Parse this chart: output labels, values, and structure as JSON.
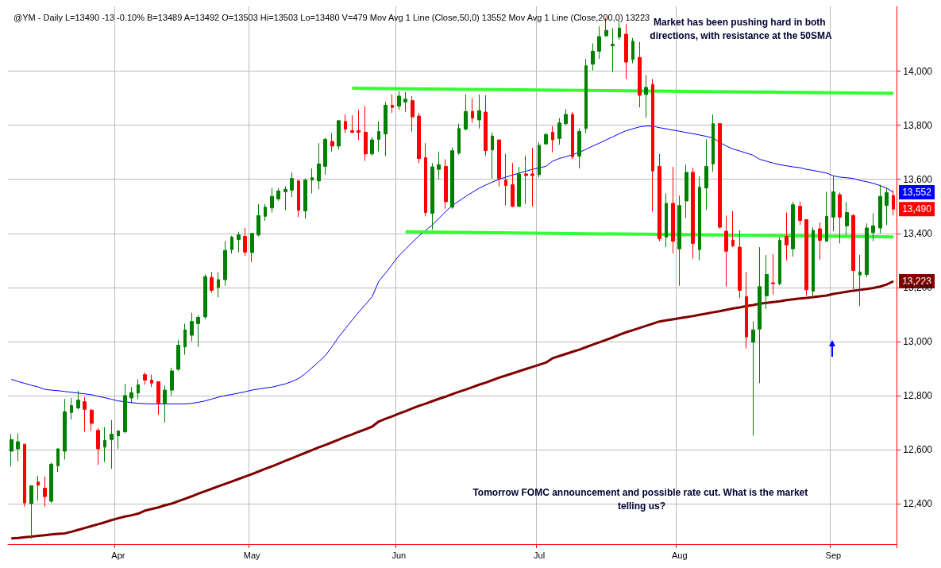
{
  "chart_data": {
    "type": "candlestick",
    "title": "@YM - Daily L=13490 -13 -0.10% B=13489 A=13492 O=13503 Hi=13503 Lo=13480 V=479 Mov Avg 1 Line (Close,50,0) 13552 Mov Avg 1 Line (Close,200,0) 13223",
    "categories": [
      null,
      null,
      null,
      null,
      null,
      null,
      null,
      null,
      null,
      null,
      null,
      null,
      null,
      null,
      null,
      null,
      "Apr",
      null,
      null,
      null,
      null,
      null,
      null,
      null,
      null,
      null,
      null,
      null,
      null,
      null,
      null,
      null,
      null,
      null,
      null,
      null,
      "May",
      null,
      null,
      null,
      null,
      null,
      null,
      null,
      null,
      null,
      null,
      null,
      null,
      null,
      null,
      null,
      null,
      null,
      null,
      null,
      null,
      null,
      "Jun",
      null,
      null,
      null,
      null,
      null,
      null,
      null,
      null,
      null,
      null,
      null,
      null,
      null,
      null,
      null,
      null,
      null,
      null,
      null,
      null,
      "Jul",
      null,
      null,
      null,
      null,
      null,
      null,
      null,
      null,
      null,
      null,
      null,
      null,
      null,
      null,
      null,
      null,
      null,
      null,
      null,
      null,
      "Aug",
      null,
      null,
      null,
      null,
      null,
      null,
      null,
      null,
      null,
      null,
      null,
      null,
      null,
      null,
      null,
      null,
      null,
      null,
      null,
      null,
      null,
      null,
      "Sep",
      null,
      null,
      null,
      null,
      null,
      null,
      null,
      null,
      null
    ],
    "ohlc": [
      [
        12594,
        12657,
        12537,
        12637
      ],
      [
        12603,
        12660,
        12557,
        12629
      ],
      [
        12620,
        12620,
        12389,
        12403
      ],
      [
        12400,
        12466,
        12270,
        12466
      ],
      [
        12480,
        12503,
        12411,
        12468
      ],
      [
        12457,
        12500,
        12389,
        12426
      ],
      [
        12409,
        12551,
        12403,
        12546
      ],
      [
        12540,
        12603,
        12517,
        12603
      ],
      [
        12594,
        12788,
        12563,
        12740
      ],
      [
        12737,
        12791,
        12711,
        12763
      ],
      [
        12754,
        12817,
        12749,
        12783
      ],
      [
        12777,
        12794,
        12666,
        12749
      ],
      [
        12746,
        12751,
        12669,
        12697
      ],
      [
        12671,
        12680,
        12543,
        12603
      ],
      [
        12609,
        12683,
        12554,
        12634
      ],
      [
        12637,
        12709,
        12529,
        12657
      ],
      [
        12651,
        12671,
        12603,
        12669
      ],
      [
        12666,
        12843,
        12660,
        12800
      ],
      [
        12791,
        12831,
        12771,
        12811
      ],
      [
        12809,
        12860,
        12786,
        12840
      ],
      [
        12877,
        12886,
        12840,
        12857
      ],
      [
        12857,
        12877,
        12831,
        12846
      ],
      [
        12851,
        12851,
        12729,
        12771
      ],
      [
        12771,
        12837,
        12700,
        12820
      ],
      [
        12820,
        12903,
        12800,
        12891
      ],
      [
        12897,
        13006,
        12891,
        12986
      ],
      [
        12980,
        13066,
        12951,
        13043
      ],
      [
        13023,
        13106,
        13000,
        13074
      ],
      [
        13066,
        13097,
        12980,
        13089
      ],
      [
        13091,
        13248,
        13083,
        13240
      ],
      [
        13237,
        13257,
        13180,
        13189
      ],
      [
        13200,
        13257,
        13163,
        13229
      ],
      [
        13229,
        13371,
        13206,
        13337
      ],
      [
        13340,
        13391,
        13326,
        13386
      ],
      [
        13377,
        13406,
        13329,
        13394
      ],
      [
        13389,
        13420,
        13317,
        13331
      ],
      [
        13329,
        13400,
        13294,
        13400
      ],
      [
        13394,
        13508,
        13389,
        13466
      ],
      [
        13463,
        13508,
        13446,
        13497
      ],
      [
        13494,
        13568,
        13477,
        13537
      ],
      [
        13528,
        13568,
        13520,
        13557
      ],
      [
        13554,
        13574,
        13486,
        13563
      ],
      [
        13560,
        13626,
        13534,
        13603
      ],
      [
        13594,
        13597,
        13460,
        13486
      ],
      [
        13483,
        13603,
        13454,
        13597
      ],
      [
        13597,
        13640,
        13548,
        13606
      ],
      [
        13594,
        13734,
        13563,
        13657
      ],
      [
        13648,
        13754,
        13617,
        13748
      ],
      [
        13740,
        13771,
        13703,
        13723
      ],
      [
        13723,
        13820,
        13711,
        13817
      ],
      [
        13814,
        13840,
        13771,
        13786
      ],
      [
        13780,
        13837,
        13771,
        13774
      ],
      [
        13780,
        13857,
        13746,
        13774
      ],
      [
        13774,
        13871,
        13668,
        13694
      ],
      [
        13694,
        13757,
        13688,
        13746
      ],
      [
        13748,
        13814,
        13703,
        13777
      ],
      [
        13768,
        13886,
        13686,
        13874
      ],
      [
        13874,
        13914,
        13846,
        13866
      ],
      [
        13871,
        13926,
        13857,
        13908
      ],
      [
        13886,
        13923,
        13849,
        13897
      ],
      [
        13891,
        13908,
        13777,
        13831
      ],
      [
        13834,
        13846,
        13660,
        13677
      ],
      [
        13680,
        13734,
        13463,
        13477
      ],
      [
        13474,
        13660,
        13414,
        13646
      ],
      [
        13637,
        13703,
        13600,
        13654
      ],
      [
        13648,
        13674,
        13491,
        13517
      ],
      [
        13497,
        13717,
        13491,
        13706
      ],
      [
        13697,
        13806,
        13691,
        13788
      ],
      [
        13786,
        13914,
        13780,
        13851
      ],
      [
        13851,
        13900,
        13809,
        13826
      ],
      [
        13820,
        13914,
        13788,
        13854
      ],
      [
        13849,
        13911,
        13688,
        13706
      ],
      [
        13709,
        13774,
        13603,
        13760
      ],
      [
        13746,
        13746,
        13574,
        13603
      ],
      [
        13597,
        13694,
        13503,
        13577
      ],
      [
        13580,
        13660,
        13497,
        13500
      ],
      [
        13500,
        13646,
        13497,
        13620
      ],
      [
        13620,
        13688,
        13508,
        13614
      ],
      [
        13620,
        13717,
        13500,
        13614
      ],
      [
        13617,
        13737,
        13606,
        13726
      ],
      [
        13731,
        13771,
        13728,
        13766
      ],
      [
        13774,
        13797,
        13700,
        13746
      ],
      [
        13751,
        13826,
        13728,
        13809
      ],
      [
        13806,
        13860,
        13800,
        13840
      ],
      [
        13840,
        13849,
        13674,
        13683
      ],
      [
        13686,
        13788,
        13640,
        13777
      ],
      [
        13788,
        14046,
        13771,
        14020
      ],
      [
        14026,
        14103,
        14003,
        14074
      ],
      [
        14074,
        14166,
        14046,
        14128
      ],
      [
        14131,
        14197,
        14128,
        14151
      ],
      [
        14094,
        14160,
        13997,
        14100
      ],
      [
        14126,
        14188,
        14117,
        14160
      ],
      [
        14137,
        14174,
        13971,
        14034
      ],
      [
        14043,
        14123,
        14029,
        14111
      ],
      [
        14051,
        14108,
        13866,
        13911
      ],
      [
        13914,
        13986,
        13828,
        13940
      ],
      [
        13951,
        13971,
        13480,
        13631
      ],
      [
        13648,
        13694,
        13371,
        13380
      ],
      [
        13386,
        13548,
        13349,
        13511
      ],
      [
        13511,
        13646,
        13326,
        13371
      ],
      [
        13343,
        13540,
        13206,
        13503
      ],
      [
        13520,
        13654,
        13457,
        13626
      ],
      [
        13626,
        13643,
        13306,
        13363
      ],
      [
        13340,
        13611,
        13300,
        13571
      ],
      [
        13568,
        13748,
        13486,
        13648
      ],
      [
        13657,
        13840,
        13628,
        13806
      ],
      [
        13806,
        13809,
        13417,
        13423
      ],
      [
        13408,
        13466,
        13203,
        13334
      ],
      [
        13374,
        13483,
        13349,
        13354
      ],
      [
        13349,
        13411,
        13160,
        13189
      ],
      [
        13166,
        13257,
        12974,
        13017
      ],
      [
        12997,
        13074,
        12651,
        13043
      ],
      [
        13046,
        13349,
        12846,
        13203
      ],
      [
        13169,
        13320,
        13120,
        13248
      ],
      [
        13217,
        13323,
        13174,
        13214
      ],
      [
        13214,
        13386,
        13208,
        13374
      ],
      [
        13389,
        13477,
        13300,
        13357
      ],
      [
        13343,
        13517,
        13314,
        13506
      ],
      [
        13500,
        13517,
        13431,
        13448
      ],
      [
        13451,
        13451,
        13169,
        13191
      ],
      [
        13186,
        13423,
        13160,
        13411
      ],
      [
        13417,
        13440,
        13303,
        13374
      ],
      [
        13371,
        13554,
        13371,
        13463
      ],
      [
        13460,
        13614,
        13408,
        13554
      ],
      [
        13543,
        13551,
        13363,
        13460
      ],
      [
        13428,
        13517,
        13394,
        13477
      ],
      [
        13466,
        13471,
        13194,
        13263
      ],
      [
        13246,
        13320,
        13131,
        13257
      ],
      [
        13248,
        13437,
        13237,
        13420
      ],
      [
        13403,
        13474,
        13371,
        13428
      ],
      [
        13420,
        13580,
        13400,
        13537
      ],
      [
        13503,
        13568,
        13431,
        13551
      ],
      [
        13540,
        13560,
        13466,
        13490
      ]
    ],
    "series": [
      {
        "type": "line",
        "color": "#0000ff",
        "values": [
          12860,
          12852,
          12845,
          12838,
          12832,
          12823,
          12820,
          12818,
          12815,
          12812,
          12809,
          12806,
          12803,
          12797,
          12792,
          12786,
          12780,
          12777,
          12774,
          12771,
          12770,
          12769,
          12769,
          12769,
          12769,
          12769,
          12769,
          12771,
          12775,
          12780,
          12787,
          12794,
          12800,
          12804,
          12809,
          12814,
          12820,
          12824,
          12828,
          12831,
          12837,
          12843,
          12852,
          12863,
          12881,
          12903,
          12925,
          12948,
          12981,
          13017,
          13048,
          13079,
          13109,
          13137,
          13166,
          13223,
          13253,
          13285,
          13317,
          13342,
          13367,
          13390,
          13411,
          13431,
          13456,
          13481,
          13503,
          13520,
          13537,
          13552,
          13567,
          13579,
          13590,
          13600,
          13608,
          13616,
          13623,
          13630,
          13637,
          13643,
          13648,
          13667,
          13677,
          13684,
          13691,
          13700,
          13711,
          13723,
          13734,
          13746,
          13757,
          13769,
          13780,
          13787,
          13794,
          13797,
          13797,
          13791,
          13787,
          13782,
          13778,
          13773,
          13769,
          13764,
          13759,
          13753,
          13737,
          13723,
          13712,
          13705,
          13697,
          13689,
          13674,
          13667,
          13660,
          13654,
          13650,
          13646,
          13643,
          13637,
          13633,
          13628,
          13623,
          13613,
          13608,
          13606,
          13603,
          13596,
          13591,
          13585,
          13577,
          13567,
          13552
        ]
      },
      {
        "type": "line",
        "color": "#800000",
        "values": [
          12271,
          12273,
          12276,
          12278,
          12281,
          12283,
          12286,
          12288,
          12290,
          12296,
          12303,
          12310,
          12317,
          12324,
          12331,
          12339,
          12346,
          12352,
          12357,
          12363,
          12374,
          12380,
          12386,
          12394,
          12400,
          12409,
          12418,
          12427,
          12437,
          12446,
          12455,
          12464,
          12473,
          12482,
          12491,
          12500,
          12509,
          12519,
          12529,
          12538,
          12548,
          12558,
          12568,
          12578,
          12588,
          12598,
          12608,
          12617,
          12627,
          12637,
          12647,
          12656,
          12666,
          12675,
          12685,
          12704,
          12714,
          12723,
          12733,
          12742,
          12752,
          12762,
          12770,
          12779,
          12788,
          12796,
          12805,
          12814,
          12822,
          12831,
          12840,
          12848,
          12857,
          12866,
          12874,
          12882,
          12890,
          12898,
          12906,
          12914,
          12922,
          12938,
          12946,
          12954,
          12962,
          12970,
          12979,
          12988,
          12997,
          13006,
          13015,
          13025,
          13034,
          13042,
          13050,
          13058,
          13066,
          13074,
          13078,
          13082,
          13086,
          13090,
          13094,
          13099,
          13103,
          13108,
          13112,
          13117,
          13122,
          13126,
          13131,
          13135,
          13140,
          13143,
          13146,
          13149,
          13153,
          13156,
          13159,
          13161,
          13164,
          13167,
          13170,
          13176,
          13180,
          13184,
          13188,
          13191,
          13194,
          13198,
          13203,
          13211,
          13223
        ]
      },
      {
        "type": "line",
        "color": "#33ff33",
        "values": [
          null,
          null,
          null,
          null,
          null,
          null,
          null,
          null,
          null,
          null,
          null,
          null,
          null,
          null,
          null,
          null,
          null,
          null,
          null,
          null,
          null,
          null,
          null,
          null,
          null,
          null,
          null,
          null,
          null,
          null,
          null,
          null,
          null,
          null,
          null,
          null,
          null,
          null,
          null,
          null,
          null,
          null,
          null,
          null,
          null,
          null,
          null,
          null,
          null,
          null,
          null,
          13937,
          null,
          null,
          null,
          null,
          null,
          null,
          null,
          null,
          null,
          null,
          null,
          null,
          null,
          null,
          null,
          null,
          null,
          null,
          null,
          null,
          null,
          null,
          null,
          null,
          null,
          null,
          null,
          null,
          null,
          null,
          null,
          null,
          null,
          null,
          null,
          null,
          null,
          null,
          null,
          null,
          null,
          null,
          null,
          null,
          null,
          null,
          null,
          null,
          null,
          null,
          null,
          null,
          null,
          null,
          null,
          null,
          null,
          null,
          null,
          null,
          null,
          null,
          null,
          null,
          null,
          null,
          null,
          null,
          null,
          null,
          null,
          null,
          null,
          null,
          null,
          null,
          null,
          null,
          null,
          null,
          13918
        ]
      },
      {
        "type": "line",
        "color": "#33ff33",
        "values": [
          null,
          null,
          null,
          null,
          null,
          null,
          null,
          null,
          null,
          null,
          null,
          null,
          null,
          null,
          null,
          null,
          null,
          null,
          null,
          null,
          null,
          null,
          null,
          null,
          null,
          null,
          null,
          null,
          null,
          null,
          null,
          null,
          null,
          null,
          null,
          null,
          null,
          null,
          null,
          null,
          null,
          null,
          null,
          null,
          null,
          null,
          null,
          null,
          null,
          null,
          null,
          null,
          null,
          null,
          null,
          null,
          null,
          null,
          null,
          13406,
          null,
          null,
          null,
          null,
          null,
          null,
          null,
          null,
          null,
          null,
          null,
          null,
          null,
          null,
          null,
          null,
          null,
          null,
          null,
          null,
          null,
          null,
          null,
          null,
          null,
          null,
          null,
          null,
          null,
          null,
          null,
          null,
          null,
          null,
          null,
          null,
          null,
          null,
          null,
          null,
          null,
          null,
          null,
          null,
          null,
          null,
          null,
          null,
          null,
          null,
          null,
          null,
          null,
          null,
          null,
          null,
          null,
          null,
          null,
          null,
          null,
          null,
          null,
          null,
          null,
          null,
          null,
          null,
          null,
          null,
          null,
          null,
          13387
        ]
      }
    ],
    "ylim": [
      12250,
      14240
    ],
    "yticks": [
      {
        "value": 12400,
        "label": "12,400"
      },
      {
        "value": 12600,
        "label": "12,600"
      },
      {
        "value": 12800,
        "label": "12,800"
      },
      {
        "value": 13000,
        "label": "13,000"
      },
      {
        "value": 13200,
        "label": "13,200"
      },
      {
        "value": 13400,
        "label": "13,400"
      },
      {
        "value": 13600,
        "label": "13,600"
      },
      {
        "value": 13800,
        "label": "13,800"
      },
      {
        "value": 14000,
        "label": "14,000"
      }
    ],
    "grid": true,
    "marker": "none",
    "annotations": [
      "Market has been pushing hard in both directions, with resistance at the 50SMA",
      "Tomorrow FOMC announcement and possible rate cut. What is the market telling us?",
      "13,552",
      "13,490",
      "13,223"
    ]
  }
}
